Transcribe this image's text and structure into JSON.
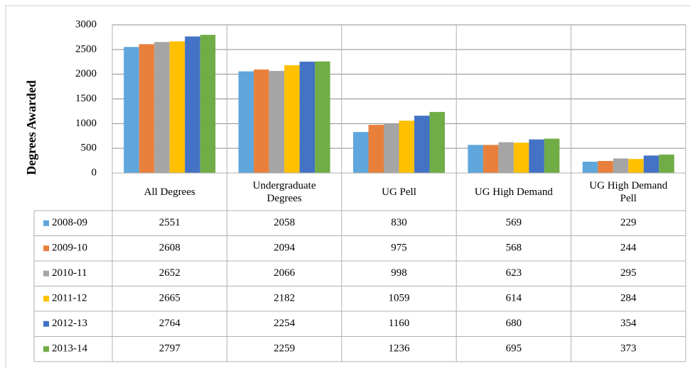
{
  "chart_data": {
    "type": "bar",
    "y_axis_label": "Degrees Awarded",
    "categories": [
      "All Degrees",
      "Undergraduate Degrees",
      "UG Pell",
      "UG High Demand",
      "UG High Demand Pell"
    ],
    "series": [
      {
        "name": "2008-09",
        "color": "#5ea6dc",
        "values": [
          2551,
          2058,
          830,
          569,
          229
        ]
      },
      {
        "name": "2009-10",
        "color": "#e8803c",
        "values": [
          2608,
          2094,
          975,
          568,
          244
        ]
      },
      {
        "name": "2010-11",
        "color": "#a5a5a5",
        "values": [
          2652,
          2066,
          998,
          623,
          295
        ]
      },
      {
        "name": "2011-12",
        "color": "#ffc000",
        "values": [
          2665,
          2182,
          1059,
          614,
          284
        ]
      },
      {
        "name": "2012-13",
        "color": "#4472c4",
        "values": [
          2764,
          2254,
          1160,
          680,
          354
        ]
      },
      {
        "name": "2013-14",
        "color": "#70ad47",
        "values": [
          2797,
          2259,
          1236,
          695,
          373
        ]
      }
    ],
    "ylim": [
      0,
      3000
    ],
    "yticks": [
      0,
      500,
      1000,
      1500,
      2000,
      2500,
      3000
    ],
    "grid": true,
    "data_table": true
  }
}
